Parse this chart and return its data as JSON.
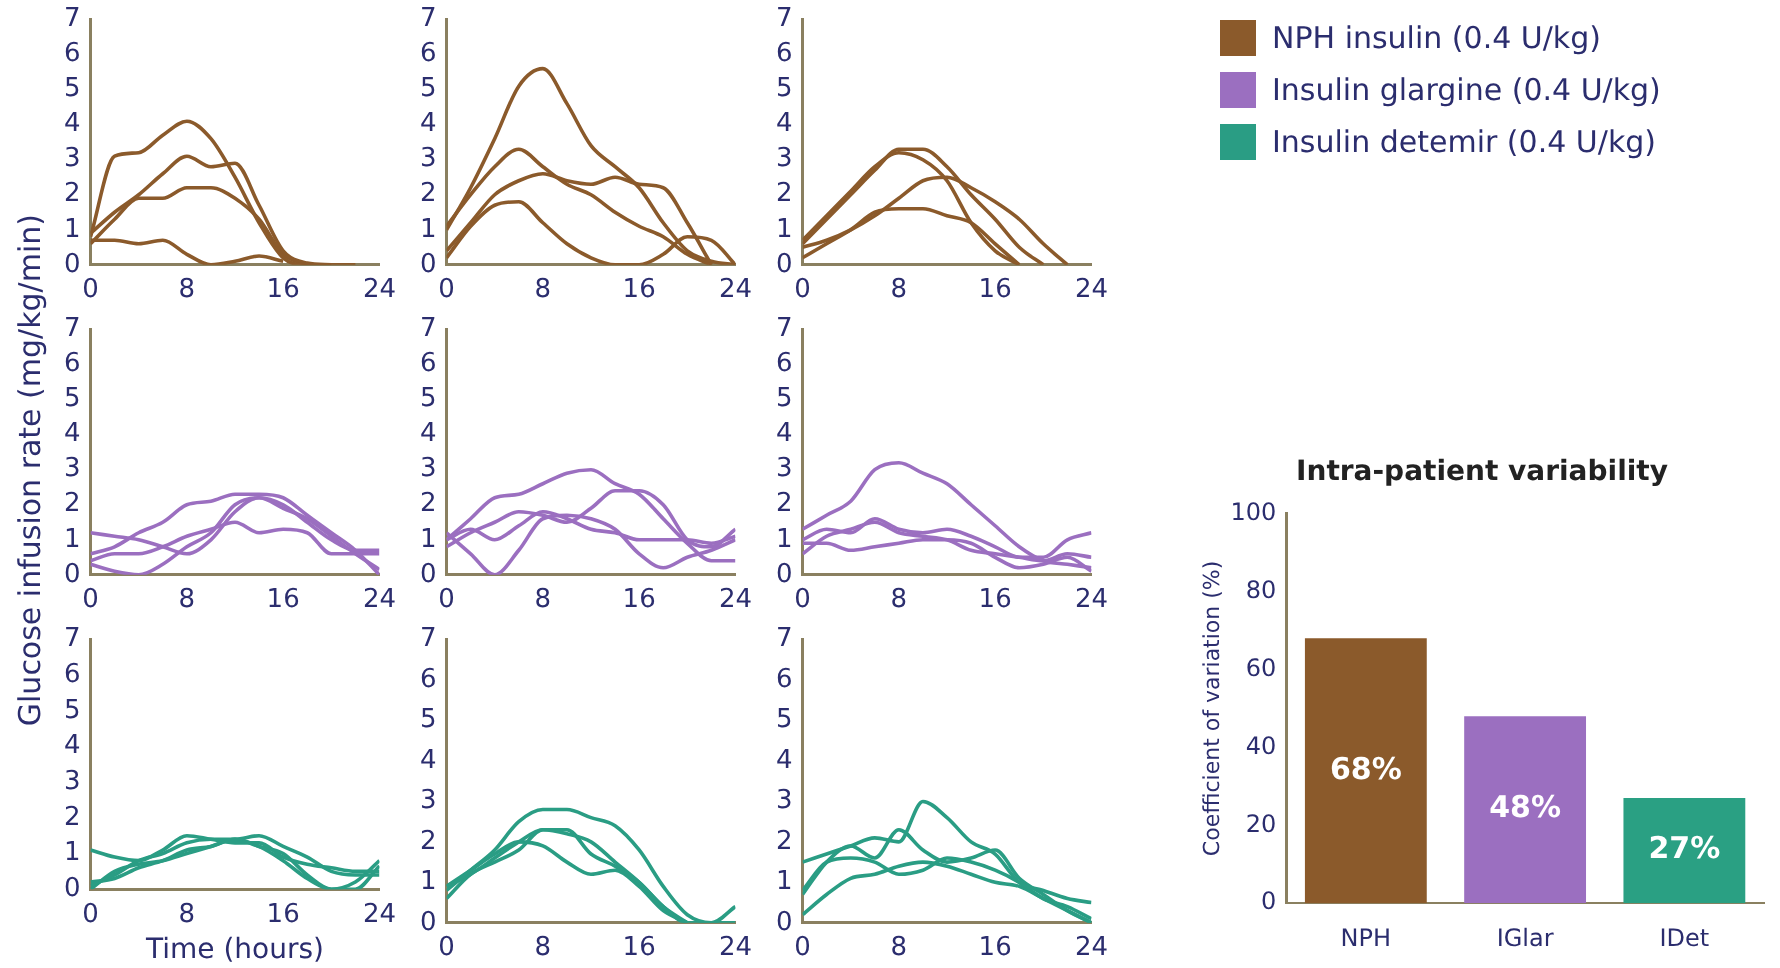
{
  "chart_data": [
    {
      "type": "line",
      "x": [
        0,
        2,
        4,
        6,
        8,
        10,
        12,
        14,
        16,
        18,
        20,
        22
      ],
      "xlim": [
        0,
        24
      ],
      "xticks": [
        0,
        8,
        16,
        24
      ],
      "ylim": [
        0,
        7
      ],
      "yticks": [
        0,
        1,
        2,
        3,
        4,
        5,
        6,
        7
      ],
      "series": [
        {
          "name": "NPH insulin (0.4 U/kg)",
          "color": "#8b5a2b",
          "values": [
            0.8,
            3.1,
            3.2,
            3.7,
            4.1,
            3.6,
            2.5,
            1.2,
            0.2,
            0,
            0,
            0
          ]
        },
        {
          "color": "#8b5a2b",
          "values": [
            0.9,
            1.5,
            2.0,
            2.6,
            3.1,
            2.8,
            2.9,
            1.7,
            0.4,
            0.05,
            0,
            null
          ]
        },
        {
          "color": "#8b5a2b",
          "values": [
            0.6,
            1.3,
            1.9,
            1.9,
            2.2,
            2.2,
            1.9,
            1.3,
            0.3,
            0,
            null,
            null
          ]
        },
        {
          "color": "#8b5a2b",
          "values": [
            0.7,
            0.7,
            0.6,
            0.7,
            0.3,
            0,
            0.1,
            0.25,
            0.1,
            null,
            null,
            null
          ]
        }
      ]
    },
    {
      "type": "line",
      "x": [
        0,
        2,
        4,
        6,
        8,
        10,
        12,
        14,
        16,
        18,
        20,
        22,
        24
      ],
      "xlim": [
        0,
        24
      ],
      "xticks": [
        0,
        8,
        16,
        24
      ],
      "ylim": [
        0,
        7
      ],
      "yticks": [
        0,
        1,
        2,
        3,
        4,
        5,
        6,
        7
      ],
      "series": [
        {
          "color": "#8b5a2b",
          "values": [
            1.0,
            2.2,
            3.6,
            5.1,
            5.6,
            4.6,
            3.4,
            2.8,
            2.2,
            1.2,
            0.4,
            0.1,
            0
          ]
        },
        {
          "color": "#8b5a2b",
          "values": [
            1.1,
            2.0,
            2.8,
            3.3,
            2.8,
            2.3,
            2.0,
            1.5,
            1.1,
            0.8,
            0.3,
            0,
            null
          ]
        },
        {
          "color": "#8b5a2b",
          "values": [
            0.4,
            1.2,
            2.0,
            2.4,
            2.6,
            2.4,
            2.3,
            2.5,
            2.3,
            2.2,
            1.2,
            0,
            null
          ]
        },
        {
          "color": "#8b5a2b",
          "values": [
            0.2,
            1.1,
            1.7,
            1.8,
            1.2,
            0.6,
            0.2,
            0,
            0,
            0.3,
            0.8,
            0.7,
            0
          ]
        }
      ]
    },
    {
      "type": "line",
      "x": [
        0,
        2,
        4,
        6,
        8,
        10,
        12,
        14,
        16,
        18,
        20,
        22
      ],
      "xlim": [
        0,
        24
      ],
      "xticks": [
        0,
        8,
        16,
        24
      ],
      "ylim": [
        0,
        7
      ],
      "yticks": [
        0,
        1,
        2,
        3,
        4,
        5,
        6,
        7
      ],
      "series": [
        {
          "color": "#8b5a2b",
          "values": [
            0.7,
            1.4,
            2.1,
            2.8,
            3.2,
            3.0,
            2.4,
            1.2,
            0.4,
            0,
            null,
            null
          ]
        },
        {
          "color": "#8b5a2b",
          "values": [
            0.6,
            1.3,
            2.0,
            2.7,
            3.3,
            3.3,
            2.8,
            2.0,
            1.3,
            0.5,
            0,
            null
          ]
        },
        {
          "color": "#8b5a2b",
          "values": [
            0.5,
            0.7,
            1.0,
            1.4,
            1.9,
            2.4,
            2.5,
            2.2,
            1.8,
            1.3,
            0.6,
            0
          ]
        },
        {
          "color": "#8b5a2b",
          "values": [
            0.2,
            0.6,
            1.0,
            1.5,
            1.6,
            1.6,
            1.4,
            1.2,
            0.6,
            0,
            null,
            null
          ]
        }
      ]
    },
    {
      "type": "line",
      "ylabel": "Glucose infusion rate (mg/kg/min)",
      "x": [
        0,
        2,
        4,
        6,
        8,
        10,
        12,
        14,
        16,
        18,
        20,
        22,
        24
      ],
      "xlim": [
        0,
        24
      ],
      "xticks": [
        0,
        8,
        16,
        24
      ],
      "ylim": [
        0,
        7
      ],
      "yticks": [
        0,
        1,
        2,
        3,
        4,
        5,
        6,
        7
      ],
      "series": [
        {
          "name": "Insulin glargine (0.4 U/kg)",
          "color": "#9b6fc0",
          "values": [
            1.2,
            1.1,
            1.0,
            0.8,
            0.6,
            1.0,
            1.8,
            2.2,
            2.0,
            1.5,
            1.0,
            0.7,
            0.7
          ]
        },
        {
          "color": "#9b6fc0",
          "values": [
            0.6,
            0.8,
            1.2,
            1.5,
            2.0,
            2.1,
            2.3,
            2.3,
            2.2,
            1.7,
            1.2,
            0.7,
            0
          ]
        },
        {
          "color": "#9b6fc0",
          "values": [
            0.4,
            0.6,
            0.6,
            0.8,
            1.1,
            1.3,
            1.5,
            1.2,
            1.3,
            1.2,
            0.6,
            0.6,
            0.6
          ]
        },
        {
          "color": "#9b6fc0",
          "values": [
            0.3,
            0.1,
            0,
            0.3,
            0.8,
            1.2,
            2.0,
            2.2,
            1.9,
            1.6,
            1.1,
            0.6,
            0.15
          ]
        }
      ]
    },
    {
      "type": "line",
      "x": [
        0,
        2,
        4,
        6,
        8,
        10,
        12,
        14,
        16,
        18,
        20,
        22,
        24
      ],
      "xlim": [
        0,
        24
      ],
      "xticks": [
        0,
        8,
        16,
        24
      ],
      "ylim": [
        0,
        7
      ],
      "yticks": [
        0,
        1,
        2,
        3,
        4,
        5,
        6,
        7
      ],
      "series": [
        {
          "color": "#9b6fc0",
          "values": [
            1.0,
            1.6,
            2.2,
            2.3,
            2.6,
            2.9,
            3.0,
            2.6,
            2.3,
            1.6,
            0.9,
            0.4,
            0.4
          ]
        },
        {
          "color": "#9b6fc0",
          "values": [
            0.8,
            1.2,
            1.5,
            1.8,
            1.7,
            1.5,
            1.9,
            2.4,
            2.4,
            2.0,
            1.0,
            0.8,
            1.3
          ]
        },
        {
          "color": "#9b6fc0",
          "values": [
            1.0,
            1.3,
            1.0,
            1.4,
            1.8,
            1.6,
            1.3,
            1.2,
            1.0,
            1.0,
            1.0,
            0.9,
            1.1
          ]
        },
        {
          "color": "#9b6fc0",
          "values": [
            1.2,
            0.6,
            0,
            0.7,
            1.6,
            1.7,
            1.6,
            1.3,
            0.6,
            0.2,
            0.5,
            0.7,
            1.0
          ]
        }
      ]
    },
    {
      "type": "line",
      "x": [
        0,
        2,
        4,
        6,
        8,
        10,
        12,
        14,
        16,
        18,
        20,
        22,
        24
      ],
      "xlim": [
        0,
        24
      ],
      "xticks": [
        0,
        8,
        16,
        24
      ],
      "ylim": [
        0,
        7
      ],
      "yticks": [
        0,
        1,
        2,
        3,
        4,
        5,
        6,
        7
      ],
      "series": [
        {
          "color": "#9b6fc0",
          "values": [
            1.3,
            1.7,
            2.1,
            3.0,
            3.2,
            2.9,
            2.6,
            2.0,
            1.4,
            0.8,
            0.4,
            0.3,
            0.2
          ]
        },
        {
          "color": "#9b6fc0",
          "values": [
            1.0,
            1.3,
            1.2,
            1.6,
            1.3,
            1.2,
            1.3,
            1.1,
            0.8,
            0.5,
            0.5,
            1.0,
            1.2
          ]
        },
        {
          "color": "#9b6fc0",
          "values": [
            0.6,
            1.1,
            1.3,
            1.5,
            1.2,
            1.1,
            1.0,
            0.7,
            0.6,
            0.5,
            0.4,
            0.6,
            0.5
          ]
        },
        {
          "color": "#9b6fc0",
          "values": [
            0.9,
            0.9,
            0.7,
            0.8,
            0.9,
            1.0,
            1.0,
            0.9,
            0.5,
            0.2,
            0.3,
            0.5,
            0.1
          ]
        }
      ]
    },
    {
      "type": "line",
      "xlabel": "Time (hours)",
      "x": [
        0,
        2,
        4,
        6,
        8,
        10,
        12,
        14,
        16,
        18,
        20,
        22,
        24
      ],
      "xlim": [
        0,
        24
      ],
      "xticks": [
        0,
        8,
        16,
        24
      ],
      "ylim": [
        0,
        7
      ],
      "yticks": [
        0,
        1,
        2,
        3,
        4,
        5,
        6,
        7
      ],
      "series": [
        {
          "name": "Insulin detemir (0.4 U/kg)",
          "color": "#2a9d84",
          "values": [
            1.1,
            0.9,
            0.8,
            1.1,
            1.5,
            1.4,
            1.3,
            1.3,
            0.9,
            0.7,
            0.6,
            0.5,
            0.5
          ]
        },
        {
          "color": "#2a9d84",
          "values": [
            0.1,
            0.4,
            0.8,
            1.0,
            1.3,
            1.4,
            1.4,
            1.5,
            1.2,
            0.9,
            0.5,
            0.4,
            0.4
          ]
        },
        {
          "color": "#2a9d84",
          "values": [
            0,
            0.5,
            0.7,
            0.8,
            1.0,
            1.2,
            1.4,
            1.2,
            0.8,
            0.3,
            0,
            0.2,
            0.8
          ]
        },
        {
          "color": "#2a9d84",
          "values": [
            0.2,
            0.3,
            0.6,
            0.8,
            1.1,
            1.2,
            1.4,
            1.2,
            1.0,
            0.4,
            0,
            0,
            0.65
          ]
        }
      ]
    },
    {
      "type": "line",
      "x": [
        0,
        2,
        4,
        6,
        8,
        10,
        12,
        14,
        16,
        18,
        20,
        22,
        24
      ],
      "xlim": [
        0,
        24
      ],
      "xticks": [
        0,
        8,
        16,
        24
      ],
      "ylim": [
        0,
        7
      ],
      "yticks": [
        0,
        1,
        2,
        3,
        4,
        5,
        6,
        7
      ],
      "series": [
        {
          "color": "#2a9d84",
          "values": [
            0.8,
            1.3,
            1.8,
            2.5,
            2.8,
            2.8,
            2.6,
            2.4,
            1.8,
            0.9,
            0.2,
            0,
            0.4
          ]
        },
        {
          "color": "#2a9d84",
          "values": [
            0.9,
            1.2,
            1.6,
            2.0,
            2.3,
            2.2,
            2.0,
            1.5,
            1.0,
            0.4,
            0,
            0,
            0
          ]
        },
        {
          "color": "#2a9d84",
          "values": [
            0.6,
            1.2,
            1.5,
            1.8,
            2.3,
            2.3,
            1.7,
            1.4,
            1.0,
            0.4,
            0,
            null,
            null
          ]
        },
        {
          "color": "#2a9d84",
          "values": [
            0.9,
            1.3,
            1.7,
            2.0,
            1.9,
            1.5,
            1.2,
            1.3,
            0.9,
            0.3,
            0,
            null,
            null
          ]
        }
      ]
    },
    {
      "type": "line",
      "x": [
        0,
        2,
        4,
        6,
        8,
        10,
        12,
        14,
        16,
        18,
        20,
        22,
        24
      ],
      "xlim": [
        0,
        24
      ],
      "xticks": [
        0,
        8,
        16,
        24
      ],
      "ylim": [
        0,
        7
      ],
      "yticks": [
        0,
        1,
        2,
        3,
        4,
        5,
        6,
        7
      ],
      "series": [
        {
          "color": "#2a9d84",
          "values": [
            1.5,
            1.7,
            1.9,
            2.1,
            2.0,
            3.0,
            2.6,
            2.0,
            1.7,
            1.0,
            0.8,
            0.6,
            0.5
          ]
        },
        {
          "color": "#2a9d84",
          "values": [
            0.7,
            1.5,
            1.9,
            1.6,
            2.3,
            1.8,
            1.5,
            1.6,
            1.8,
            1.1,
            0.7,
            0.3,
            0
          ]
        },
        {
          "color": "#2a9d84",
          "values": [
            0.8,
            1.5,
            1.6,
            1.5,
            1.2,
            1.3,
            1.6,
            1.5,
            1.3,
            1.0,
            0.6,
            0.4,
            0.1
          ]
        },
        {
          "color": "#2a9d84",
          "values": [
            0.2,
            0.7,
            1.1,
            1.2,
            1.4,
            1.5,
            1.4,
            1.2,
            1.0,
            0.9,
            0.6,
            0.3,
            0
          ]
        }
      ]
    },
    {
      "type": "bar",
      "title": "Intra-patient variability",
      "ylabel": "Coefficient of variation (%)",
      "categories": [
        "NPH",
        "IGlar",
        "IDet"
      ],
      "values": [
        68,
        48,
        27
      ],
      "value_labels": [
        "68%",
        "48%",
        "27%"
      ],
      "colors": [
        "#8b5a2b",
        "#9b6fc0",
        "#2aa083"
      ],
      "ylim": [
        0,
        100
      ],
      "yticks": [
        0,
        20,
        40,
        60,
        80,
        100
      ]
    }
  ]
}
